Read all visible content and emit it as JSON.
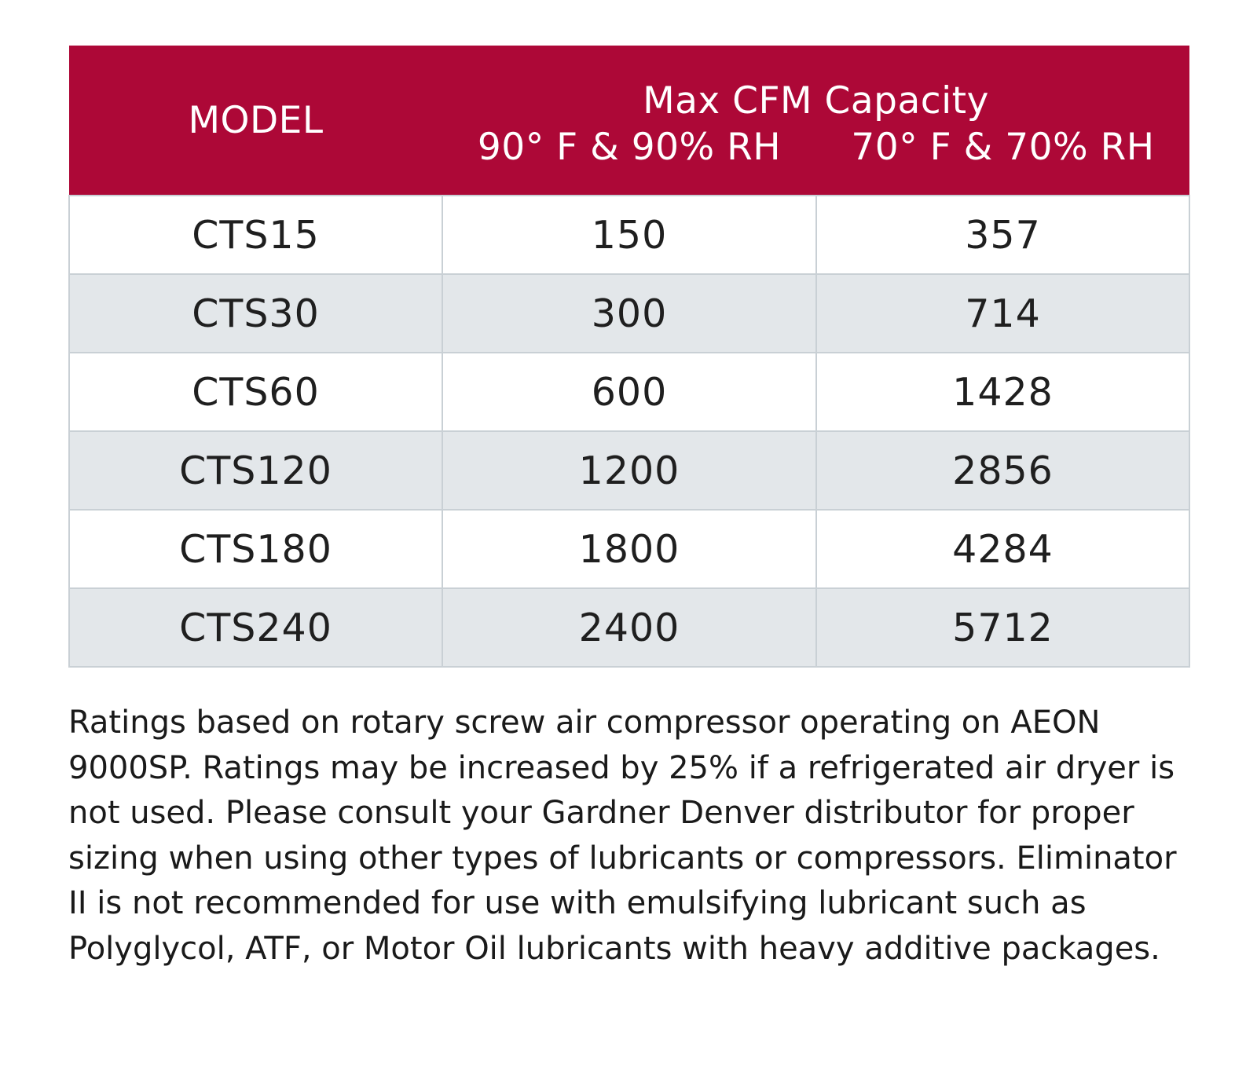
{
  "table": {
    "header": {
      "model": "MODEL",
      "group": "Max CFM Capacity",
      "col_a": "90° F & 90% RH",
      "col_b": "70° F & 70% RH"
    },
    "rows": [
      {
        "model": "CTS15",
        "a": "150",
        "b": "357"
      },
      {
        "model": "CTS30",
        "a": "300",
        "b": "714"
      },
      {
        "model": "CTS60",
        "a": "600",
        "b": "1428"
      },
      {
        "model": "CTS120",
        "a": "1200",
        "b": "2856"
      },
      {
        "model": "CTS180",
        "a": "1800",
        "b": "4284"
      },
      {
        "model": "CTS240",
        "a": "2400",
        "b": "5712"
      }
    ]
  },
  "note": "Ratings based on rotary screw air compressor operating on AEON 9000SP. Ratings may be increased by 25% if a refrigerated air dryer is not used. Please consult your Gardner Denver distributor for proper sizing when using other types of lubricants or compressors. Eliminator II is not recommended for use with emulsifying lubricant such as Polyglycol, ATF, or Motor Oil lubricants with heavy additive packages.",
  "colors": {
    "header_bg": "#ad0837",
    "header_text": "#ffffff",
    "stripe_bg": "#e3e7ea",
    "border": "#c9d0d5"
  }
}
